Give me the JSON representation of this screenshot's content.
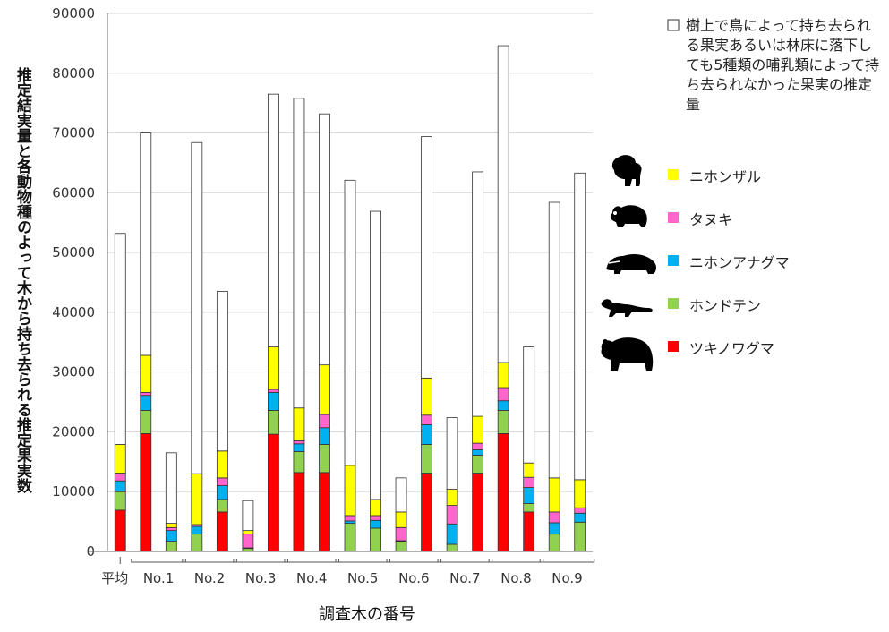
{
  "chart_data": {
    "type": "bar",
    "stacked": true,
    "ylabel": "推定結実量と各動物種のよって木から持ち去られる推定果実数",
    "xlabel": "調査木の番号",
    "ylim": [
      0,
      90000
    ],
    "yticks": [
      0,
      10000,
      20000,
      30000,
      40000,
      50000,
      60000,
      70000,
      80000,
      90000
    ],
    "grid": true,
    "groups": [
      "平均",
      "No.1",
      "No.2",
      "No.3",
      "No.4",
      "No.5",
      "No.6",
      "No.7",
      "No.8",
      "No.9"
    ],
    "bars": [
      {
        "group": 0,
        "totals": [
          6900,
          10000,
          11800,
          13100,
          17900,
          53200
        ]
      },
      {
        "group": 1,
        "totals": [
          19700,
          23600,
          26100,
          26600,
          32800,
          70000
        ]
      },
      {
        "group": 1,
        "totals": [
          0,
          1700,
          3500,
          4000,
          4700,
          16500
        ]
      },
      {
        "group": 2,
        "totals": [
          0,
          2900,
          4200,
          4500,
          13000,
          68400
        ]
      },
      {
        "group": 2,
        "totals": [
          6600,
          8700,
          11000,
          12300,
          16800,
          43500
        ]
      },
      {
        "group": 3,
        "totals": [
          0,
          500,
          600,
          2900,
          3500,
          8500
        ]
      },
      {
        "group": 3,
        "totals": [
          19600,
          23600,
          26600,
          27100,
          34200,
          76500
        ]
      },
      {
        "group": 4,
        "totals": [
          13200,
          16700,
          18000,
          18500,
          24000,
          75800
        ]
      },
      {
        "group": 4,
        "totals": [
          13200,
          17900,
          20700,
          22900,
          31200,
          73200
        ]
      },
      {
        "group": 5,
        "totals": [
          0,
          4700,
          5100,
          6000,
          14400,
          62100
        ]
      },
      {
        "group": 5,
        "totals": [
          0,
          3900,
          5200,
          6000,
          8700,
          56900
        ]
      },
      {
        "group": 6,
        "totals": [
          0,
          1700,
          1800,
          4000,
          6600,
          12300
        ]
      },
      {
        "group": 6,
        "totals": [
          13100,
          17900,
          21200,
          22800,
          29000,
          69400
        ]
      },
      {
        "group": 7,
        "totals": [
          0,
          1200,
          4600,
          7700,
          10400,
          22400
        ]
      },
      {
        "group": 7,
        "totals": [
          13100,
          16100,
          17000,
          18100,
          22600,
          63500
        ]
      },
      {
        "group": 8,
        "totals": [
          19700,
          23600,
          25200,
          27400,
          31600,
          84600
        ]
      },
      {
        "group": 8,
        "totals": [
          6600,
          8000,
          10700,
          12400,
          14800,
          34200
        ]
      },
      {
        "group": 9,
        "totals": [
          0,
          2900,
          4800,
          6600,
          12300,
          58400
        ]
      },
      {
        "group": 9,
        "totals": [
          0,
          4900,
          6400,
          7300,
          12000,
          63300
        ]
      }
    ],
    "series": [
      {
        "name": "ツキノワグマ",
        "color": "#ff0000"
      },
      {
        "name": "ホンドテン",
        "color": "#92d050"
      },
      {
        "name": "ニホンアナグマ",
        "color": "#00b0f0"
      },
      {
        "name": "タヌキ",
        "color": "#ff66cc"
      },
      {
        "name": "ニホンザル",
        "color": "#ffff00"
      },
      {
        "name": "樹上で鳥によって持ち去られる果実あるいは林床に落下しても5種類の哺乳類によって持ち去られなかった果実の推定量",
        "color": "#ffffff"
      }
    ],
    "legend_icons": [
      "monkey-icon",
      "raccoon-dog-icon",
      "badger-icon",
      "marten-icon",
      "bear-icon"
    ]
  }
}
